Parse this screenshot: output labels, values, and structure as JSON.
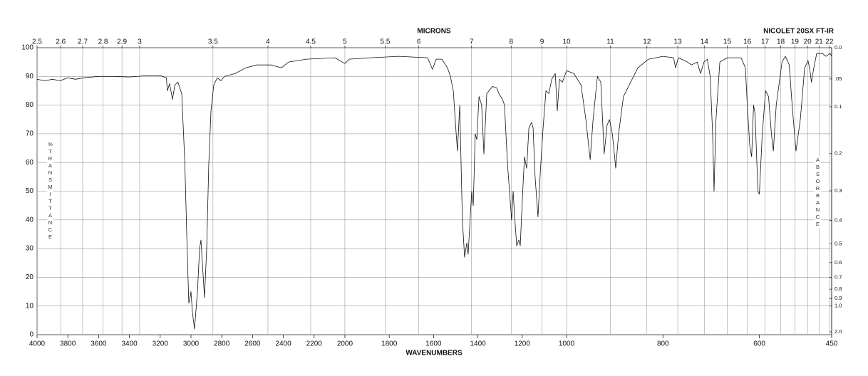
{
  "chart_data": {
    "type": "line",
    "title": "NICOLET 20SX FT-IR",
    "xlabel": "WAVENUMBERS",
    "ylabel": "%TRANSMITTANCE",
    "top_label": "MICRONS",
    "y2label": "ABSORBANCE",
    "xlim": [
      4000,
      450
    ],
    "xticks": [
      4000,
      3800,
      3600,
      3400,
      3200,
      3000,
      2800,
      2600,
      2400,
      2200,
      2000,
      1800,
      1600,
      1400,
      1200,
      1000,
      800,
      600,
      450
    ],
    "micron_ticks": [
      2.5,
      2.6,
      2.7,
      2.8,
      2.9,
      3,
      3.5,
      4,
      4.5,
      5,
      5.5,
      6,
      7,
      8,
      9,
      10,
      11,
      12,
      13,
      14,
      15,
      16,
      17,
      18,
      19,
      20,
      21,
      22
    ],
    "ylim": [
      0,
      100
    ],
    "yticks": [
      0,
      10,
      20,
      30,
      40,
      50,
      60,
      70,
      80,
      90,
      100
    ],
    "y2ticks": [
      {
        "value": 0,
        "label": "0.0"
      },
      {
        "value": 0.05,
        "label": ".05"
      },
      0.1,
      0.2,
      0.3,
      0.4,
      0.5,
      0.6,
      0.7,
      0.8,
      0.9,
      {
        "value": 1,
        "label": "1.0"
      },
      {
        "value": 2,
        "label": "2.0"
      }
    ],
    "grid": true,
    "color": "#111111",
    "x": [
      4000,
      3950,
      3900,
      3850,
      3800,
      3750,
      3700,
      3600,
      3500,
      3400,
      3300,
      3200,
      3160,
      3153,
      3139,
      3120,
      3105,
      3085,
      3060,
      3040,
      3025,
      3014,
      3009,
      3000,
      2991,
      2977,
      2958,
      2944,
      2935,
      2926,
      2912,
      2898,
      2884,
      2870,
      2852,
      2829,
      2806,
      2782,
      2713,
      2644,
      2574,
      2481,
      2412,
      2366,
      2250,
      2065,
      2000,
      1981,
      1884,
      1756,
      1627,
      1605,
      1588,
      1563,
      1537,
      1524,
      1511,
      1498,
      1492,
      1482,
      1470,
      1460,
      1450,
      1444,
      1428,
      1421,
      1412,
      1405,
      1395,
      1383,
      1373,
      1360,
      1334,
      1315,
      1305,
      1289,
      1280,
      1267,
      1248,
      1241,
      1235,
      1225,
      1215,
      1209,
      1199,
      1190,
      1180,
      1170,
      1158,
      1151,
      1142,
      1129,
      1119,
      1106,
      1093,
      1080,
      1067,
      1051,
      1042,
      1032,
      1019,
      1000,
      985,
      970,
      960,
      951,
      945,
      936,
      929,
      922,
      916,
      911,
      905,
      898,
      892,
      882,
      867,
      852,
      830,
      800,
      778,
      774,
      768,
      749,
      741,
      729,
      722,
      715,
      708,
      702,
      697,
      694,
      690,
      682,
      667,
      638,
      629,
      625,
      620,
      616,
      612,
      609,
      603,
      600,
      594,
      587,
      581,
      575,
      571,
      565,
      553,
      546,
      538,
      532,
      524,
      515,
      506,
      499,
      495,
      492,
      487,
      481,
      469,
      462,
      453,
      450
    ],
    "values": [
      89,
      88.5,
      89,
      88.5,
      89.5,
      89,
      89.5,
      90,
      90,
      89.8,
      90.2,
      90.3,
      89.5,
      85,
      87.5,
      82,
      87,
      88,
      84,
      60,
      30,
      11,
      12,
      15,
      8,
      2,
      15,
      30,
      33,
      25,
      13,
      30,
      60,
      78,
      87,
      89.5,
      88.5,
      90,
      91,
      93,
      94,
      94,
      93,
      95,
      96,
      96.5,
      94.5,
      96,
      96.5,
      97,
      96.5,
      92.5,
      96,
      96,
      93,
      90,
      85,
      70,
      64,
      80,
      40,
      27,
      32,
      28,
      50,
      45,
      70,
      68,
      83,
      80,
      63,
      84,
      86.5,
      86,
      84,
      82,
      80,
      60,
      40,
      50,
      42,
      31,
      33,
      31,
      48,
      62,
      58,
      72,
      74,
      72,
      55,
      41,
      56,
      72,
      85,
      84,
      89,
      91,
      78,
      89,
      88,
      92,
      91,
      87,
      75,
      61,
      75,
      90,
      88,
      63,
      73,
      75,
      70,
      58,
      70,
      83,
      88,
      93,
      96,
      97,
      96.5,
      93,
      96.5,
      95,
      94,
      95,
      91,
      95,
      96,
      90,
      70,
      50,
      75,
      95,
      96.5,
      96.5,
      93,
      80,
      66,
      62,
      80,
      77,
      50,
      49,
      70,
      85,
      83,
      70,
      64,
      80,
      95,
      97,
      94,
      80,
      64,
      75,
      93,
      95.5,
      92,
      88,
      93,
      98,
      98,
      97,
      98,
      97
    ]
  }
}
